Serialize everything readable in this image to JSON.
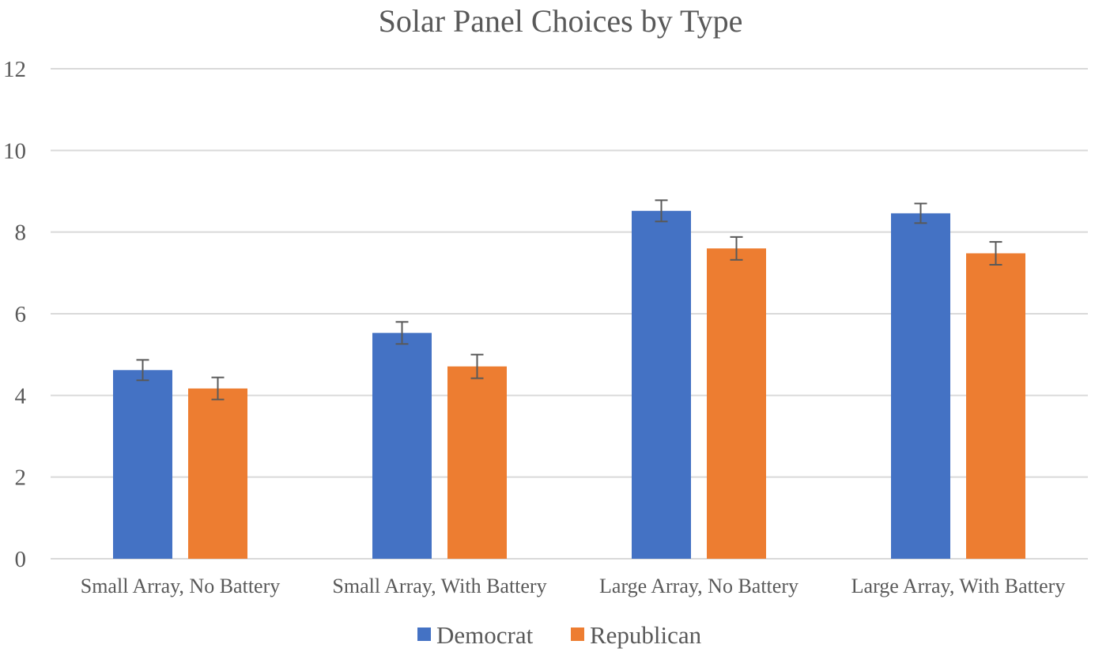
{
  "chart_data": {
    "type": "bar",
    "title": "Solar Panel Choices by Type",
    "xlabel": "",
    "ylabel": "",
    "ylim": [
      0,
      12
    ],
    "yticks": [
      0,
      2,
      4,
      6,
      8,
      10,
      12
    ],
    "grid": true,
    "legend_position": "bottom",
    "categories": [
      "Small Array, No Battery",
      "Small Array, With Battery",
      "Large Array, No Battery",
      "Large Array, With Battery"
    ],
    "series": [
      {
        "name": "Democrat",
        "color": "#4472c4",
        "values": [
          4.62,
          5.53,
          8.52,
          8.46
        ],
        "error": [
          0.25,
          0.27,
          0.26,
          0.24
        ]
      },
      {
        "name": "Republican",
        "color": "#ed7d31",
        "values": [
          4.17,
          4.71,
          7.6,
          7.48
        ],
        "error": [
          0.27,
          0.29,
          0.28,
          0.28
        ]
      }
    ]
  }
}
